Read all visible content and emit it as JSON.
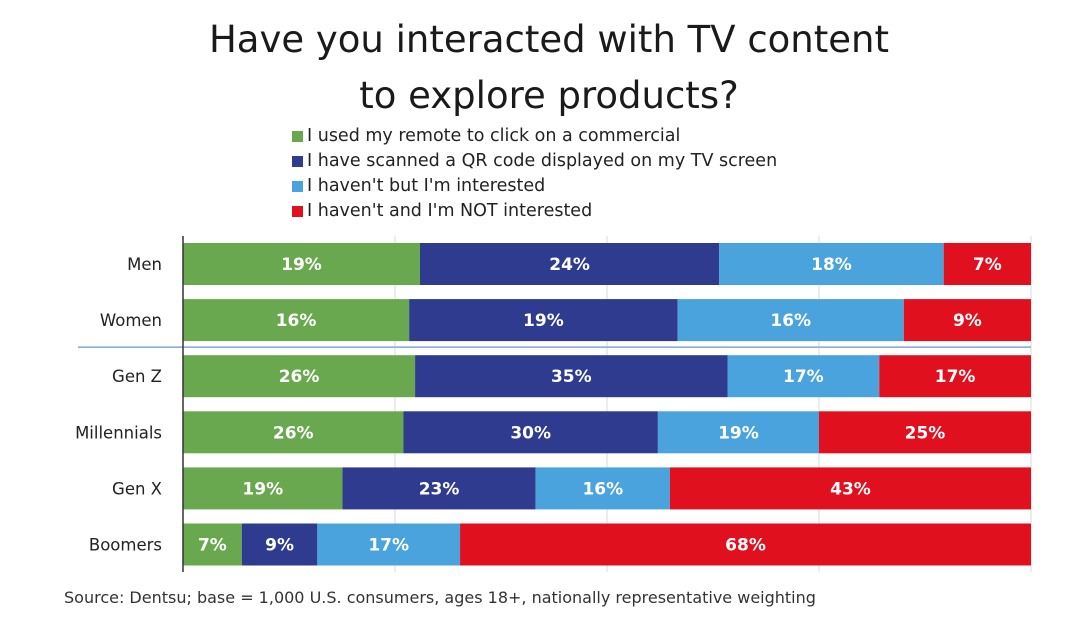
{
  "title_lines": [
    "Have you interacted with TV content",
    "to explore products?"
  ],
  "source": "Source: Dentsu; base = 1,000 U.S. consumers, ages 18+, nationally representative weighting",
  "chart_data": {
    "type": "bar",
    "orientation": "horizontal",
    "stacked": true,
    "title": "Have you interacted with TV content to explore products?",
    "categories": [
      "Men",
      "Women",
      "Gen Z",
      "Millennials",
      "Gen X",
      "Boomers"
    ],
    "series": [
      {
        "name": "I used my remote to click on a commercial",
        "color": "#6aa84f",
        "values": [
          19,
          16,
          26,
          26,
          19,
          7
        ]
      },
      {
        "name": "I have scanned a QR code displayed on my TV screen",
        "color": "#2e3b8f",
        "values": [
          24,
          19,
          35,
          30,
          23,
          9
        ]
      },
      {
        "name": "I haven't but I'm interested",
        "color": "#4aa3dc",
        "values": [
          18,
          16,
          17,
          19,
          16,
          17
        ]
      },
      {
        "name": "I haven't and I'm NOT interested",
        "color": "#e0101f",
        "values": [
          7,
          9,
          17,
          25,
          43,
          68
        ]
      }
    ],
    "value_suffix": "%",
    "legend_position": "top",
    "separator_after_category": "Women",
    "grid": true
  }
}
